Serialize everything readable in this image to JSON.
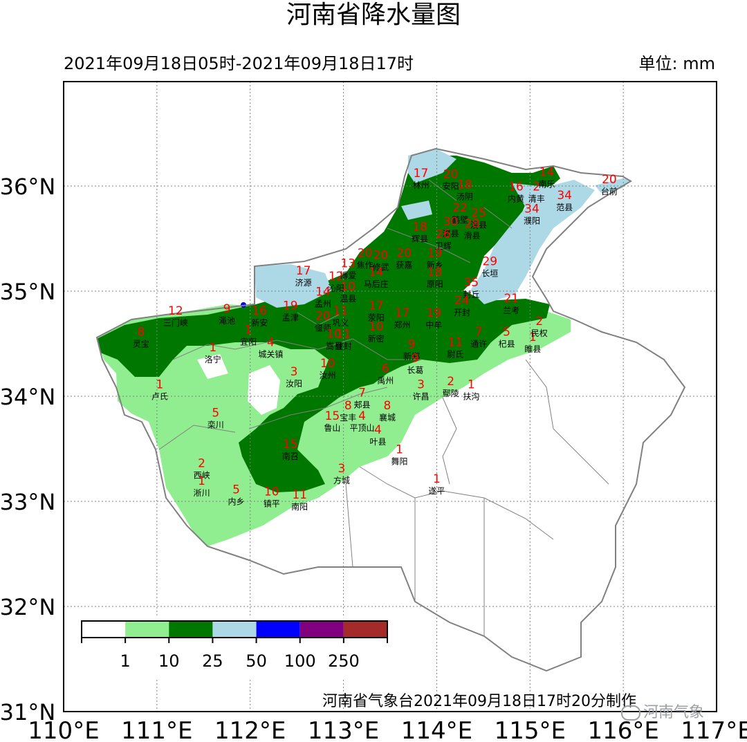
{
  "title": "河南省降水量图",
  "time_range": "2021年09月18日05时-2021年09月18日17时",
  "unit_label": "单位: mm",
  "credit": "河南省气象台2021年09月18日17时20分制作",
  "watermark": "河南气象",
  "colors": {
    "level_0": "#ffffff",
    "level_1": "#90ee90",
    "level_10": "#007800",
    "level_25": "#add8e6",
    "level_50": "#0000ff",
    "level_100": "#800080",
    "level_250": "#a52a2a",
    "station_value": "#ff0000",
    "frame": "#000000",
    "grid": "#808080",
    "boundary": "#808080"
  },
  "axes": {
    "lon_labels": [
      "110°E",
      "111°E",
      "112°E",
      "113°E",
      "114°E",
      "115°E",
      "116°E",
      "117°E"
    ],
    "lat_labels": [
      "31°N",
      "32°N",
      "33°N",
      "34°N",
      "35°N",
      "36°N"
    ],
    "lon_range": [
      110,
      117
    ],
    "lat_range": [
      31,
      37
    ]
  },
  "legend": {
    "ticks": [
      "1",
      "10",
      "25",
      "50",
      "100",
      "250"
    ],
    "colors": [
      "#ffffff",
      "#90ee90",
      "#007800",
      "#add8e6",
      "#0000ff",
      "#800080",
      "#a52a2a"
    ]
  },
  "stations": [
    {
      "name": "林州",
      "value": "17",
      "lon": 113.83,
      "lat": 36.06
    },
    {
      "name": "安阳",
      "value": "20",
      "lon": 114.15,
      "lat": 36.05
    },
    {
      "name": "汤阴",
      "value": "18",
      "lon": 114.3,
      "lat": 35.95
    },
    {
      "name": "内黄",
      "value": "16",
      "lon": 114.85,
      "lat": 35.93
    },
    {
      "name": "清丰",
      "value": "2",
      "lon": 115.07,
      "lat": 35.93
    },
    {
      "name": "南乐",
      "value": "14",
      "lon": 115.18,
      "lat": 36.07
    },
    {
      "name": "范县",
      "value": "34",
      "lon": 115.37,
      "lat": 35.85
    },
    {
      "name": "台前",
      "value": "20",
      "lon": 115.85,
      "lat": 36.0
    },
    {
      "name": "鹤壁",
      "value": "22",
      "lon": 114.25,
      "lat": 35.73
    },
    {
      "name": "淇县",
      "value": "30",
      "lon": 114.15,
      "lat": 35.6
    },
    {
      "name": "浚县",
      "value": "25",
      "lon": 114.45,
      "lat": 35.68
    },
    {
      "name": "濮阳",
      "value": "34",
      "lon": 115.02,
      "lat": 35.72
    },
    {
      "name": "滑县",
      "value": "28",
      "lon": 114.38,
      "lat": 35.58
    },
    {
      "name": "辉县",
      "value": "18",
      "lon": 113.82,
      "lat": 35.55
    },
    {
      "name": "卫辉",
      "value": "26",
      "lon": 114.07,
      "lat": 35.48
    },
    {
      "name": "新乡",
      "value": "19",
      "lon": 113.98,
      "lat": 35.3
    },
    {
      "name": "原阳",
      "value": "18",
      "lon": 113.98,
      "lat": 35.12
    },
    {
      "name": "长垣",
      "value": "29",
      "lon": 114.57,
      "lat": 35.22
    },
    {
      "name": "封丘",
      "value": "35",
      "lon": 114.37,
      "lat": 35.02
    },
    {
      "name": "兰考",
      "value": "21",
      "lon": 114.8,
      "lat": 34.87
    },
    {
      "name": "焦作",
      "value": "20",
      "lon": 113.23,
      "lat": 35.3
    },
    {
      "name": "修武",
      "value": "20",
      "lon": 113.4,
      "lat": 35.28
    },
    {
      "name": "博爱",
      "value": "13",
      "lon": 113.05,
      "lat": 35.2
    },
    {
      "name": "获嘉",
      "value": "20",
      "lon": 113.65,
      "lat": 35.3
    },
    {
      "name": "马后庄",
      "value": "14",
      "lon": 113.35,
      "lat": 35.12
    },
    {
      "name": "济源",
      "value": "17",
      "lon": 112.57,
      "lat": 35.13
    },
    {
      "name": "沁阳",
      "value": "12",
      "lon": 112.92,
      "lat": 35.08
    },
    {
      "name": "温县",
      "value": "10",
      "lon": 113.05,
      "lat": 34.98
    },
    {
      "name": "孟州",
      "value": "14",
      "lon": 112.78,
      "lat": 34.93
    },
    {
      "name": "孟津",
      "value": "19",
      "lon": 112.43,
      "lat": 34.8
    },
    {
      "name": "偃师",
      "value": "20",
      "lon": 112.78,
      "lat": 34.7
    },
    {
      "name": "巩义",
      "value": "11",
      "lon": 112.97,
      "lat": 34.75
    },
    {
      "name": "荥阳",
      "value": "17",
      "lon": 113.35,
      "lat": 34.8
    },
    {
      "name": "郑州",
      "value": "17",
      "lon": 113.63,
      "lat": 34.73
    },
    {
      "name": "中牟",
      "value": "19",
      "lon": 113.97,
      "lat": 34.73
    },
    {
      "name": "开封",
      "value": "24",
      "lon": 114.27,
      "lat": 34.85
    },
    {
      "name": "三门峡",
      "value": "12",
      "lon": 111.2,
      "lat": 34.75
    },
    {
      "name": "渑池",
      "value": "9",
      "lon": 111.75,
      "lat": 34.77
    },
    {
      "name": "新安",
      "value": "16",
      "lon": 112.1,
      "lat": 34.75
    },
    {
      "name": "灵宝",
      "value": "8",
      "lon": 110.83,
      "lat": 34.55
    },
    {
      "name": "宜阳",
      "value": "1",
      "lon": 111.98,
      "lat": 34.57
    },
    {
      "name": "洛宁",
      "value": "1",
      "lon": 111.6,
      "lat": 34.4
    },
    {
      "name": "城关镇",
      "value": "4",
      "lon": 112.22,
      "lat": 34.45
    },
    {
      "name": "汝阳",
      "value": "3",
      "lon": 112.47,
      "lat": 34.17
    },
    {
      "name": "汝州",
      "value": "10",
      "lon": 112.83,
      "lat": 34.25
    },
    {
      "name": "嵩县",
      "value": "10",
      "lon": 112.9,
      "lat": 34.53
    },
    {
      "name": "登封",
      "value": "11",
      "lon": 113.0,
      "lat": 34.53
    },
    {
      "name": "新密",
      "value": "10",
      "lon": 113.35,
      "lat": 34.6
    },
    {
      "name": "禹州",
      "value": "6",
      "lon": 113.45,
      "lat": 34.2
    },
    {
      "name": "新郑",
      "value": "9",
      "lon": 113.73,
      "lat": 34.43
    },
    {
      "name": "长葛",
      "value": "9",
      "lon": 113.77,
      "lat": 34.3
    },
    {
      "name": "尉氏",
      "value": "11",
      "lon": 114.2,
      "lat": 34.45
    },
    {
      "name": "通许",
      "value": "7",
      "lon": 114.45,
      "lat": 34.55
    },
    {
      "name": "杞县",
      "value": "5",
      "lon": 114.75,
      "lat": 34.55
    },
    {
      "name": "睢县",
      "value": "1",
      "lon": 115.03,
      "lat": 34.5
    },
    {
      "name": "民权",
      "value": "2",
      "lon": 115.1,
      "lat": 34.65
    },
    {
      "name": "许昌",
      "value": "3",
      "lon": 113.83,
      "lat": 34.05
    },
    {
      "name": "鄢陵",
      "value": "2",
      "lon": 114.15,
      "lat": 34.08
    },
    {
      "name": "扶沟",
      "value": "1",
      "lon": 114.37,
      "lat": 34.05
    },
    {
      "name": "卢氏",
      "value": "1",
      "lon": 111.03,
      "lat": 34.05
    },
    {
      "name": "郏县",
      "value": "7",
      "lon": 113.2,
      "lat": 33.97
    },
    {
      "name": "宝丰",
      "value": "8",
      "lon": 113.05,
      "lat": 33.85
    },
    {
      "name": "鲁山",
      "value": "15",
      "lon": 112.88,
      "lat": 33.75
    },
    {
      "name": "平顶山",
      "value": "4",
      "lon": 113.2,
      "lat": 33.75
    },
    {
      "name": "襄城",
      "value": "8",
      "lon": 113.47,
      "lat": 33.85
    },
    {
      "name": "叶县",
      "value": "4",
      "lon": 113.37,
      "lat": 33.62
    },
    {
      "name": "栾川",
      "value": "5",
      "lon": 111.63,
      "lat": 33.78
    },
    {
      "name": "舞阳",
      "value": "1",
      "lon": 113.6,
      "lat": 33.43
    },
    {
      "name": "南召",
      "value": "15",
      "lon": 112.43,
      "lat": 33.48
    },
    {
      "name": "方城",
      "value": "3",
      "lon": 112.98,
      "lat": 33.25
    },
    {
      "name": "遂平",
      "value": "1",
      "lon": 114.0,
      "lat": 33.15
    },
    {
      "name": "西峡",
      "value": "2",
      "lon": 111.48,
      "lat": 33.3
    },
    {
      "name": "淅川",
      "value": "1",
      "lon": 111.48,
      "lat": 33.13
    },
    {
      "name": "内乡",
      "value": "5",
      "lon": 111.85,
      "lat": 33.05
    },
    {
      "name": "镇平",
      "value": "10",
      "lon": 112.23,
      "lat": 33.03
    },
    {
      "name": "南阳",
      "value": "11",
      "lon": 112.53,
      "lat": 33.0
    }
  ]
}
